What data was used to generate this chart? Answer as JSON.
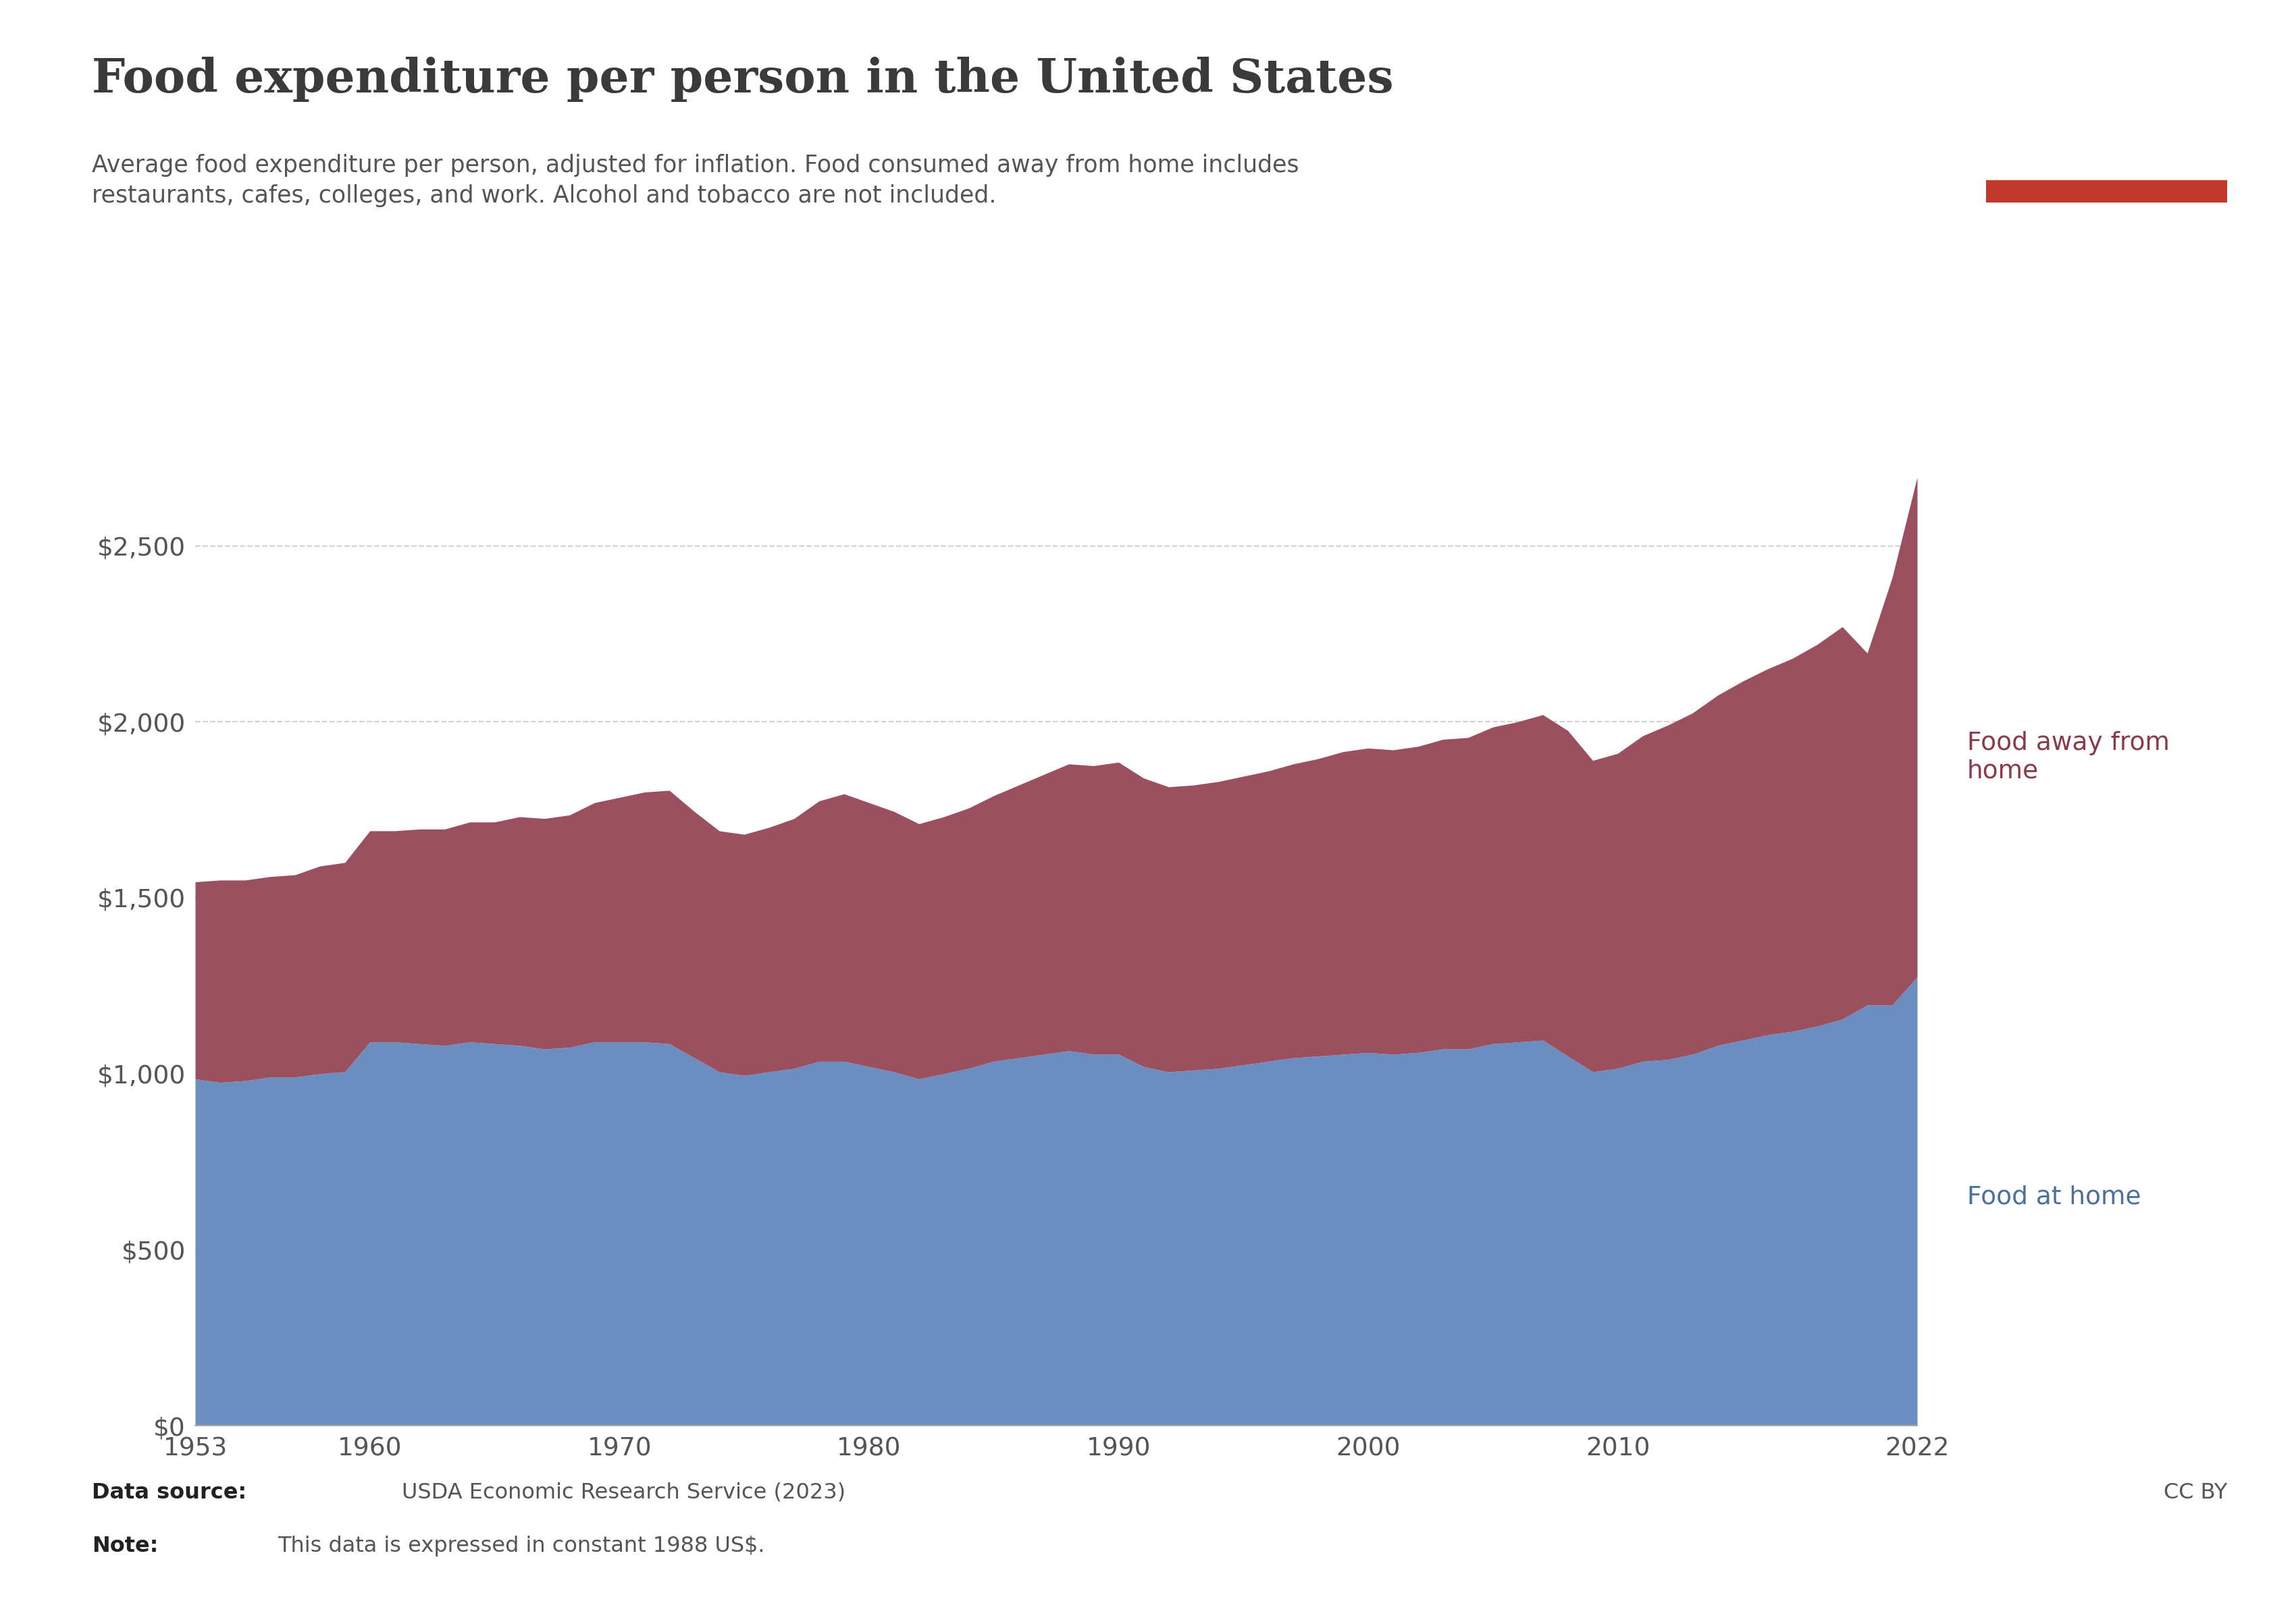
{
  "title": "Food expenditure per person in the United States",
  "subtitle": "Average food expenditure per person, adjusted for inflation. Food consumed away from home includes\nrestaurants, cafes, colleges, and work. Alcohol and tobacco are not included.",
  "data_source": "USDA Economic Research Service (2023)",
  "note": "This data is expressed in constant 1988 US$.",
  "label_home": "Food at home",
  "label_away": "Food away from\nhome",
  "color_home": "#6b8dc0",
  "color_away": "#9b5060",
  "background_color": "#ffffff",
  "years": [
    1953,
    1954,
    1955,
    1956,
    1957,
    1958,
    1959,
    1960,
    1961,
    1962,
    1963,
    1964,
    1965,
    1966,
    1967,
    1968,
    1969,
    1970,
    1971,
    1972,
    1973,
    1974,
    1975,
    1976,
    1977,
    1978,
    1979,
    1980,
    1981,
    1982,
    1983,
    1984,
    1985,
    1986,
    1987,
    1988,
    1989,
    1990,
    1991,
    1992,
    1993,
    1994,
    1995,
    1996,
    1997,
    1998,
    1999,
    2000,
    2001,
    2002,
    2003,
    2004,
    2005,
    2006,
    2007,
    2008,
    2009,
    2010,
    2011,
    2012,
    2013,
    2014,
    2015,
    2016,
    2017,
    2018,
    2019,
    2020,
    2021,
    2022
  ],
  "food_at_home": [
    985,
    975,
    980,
    990,
    990,
    1000,
    1005,
    1090,
    1090,
    1085,
    1080,
    1090,
    1085,
    1080,
    1070,
    1075,
    1090,
    1090,
    1090,
    1085,
    1045,
    1005,
    995,
    1005,
    1015,
    1035,
    1035,
    1020,
    1005,
    985,
    1000,
    1015,
    1035,
    1045,
    1055,
    1065,
    1055,
    1055,
    1020,
    1005,
    1010,
    1015,
    1025,
    1035,
    1045,
    1050,
    1055,
    1060,
    1055,
    1060,
    1070,
    1070,
    1085,
    1090,
    1095,
    1050,
    1005,
    1015,
    1035,
    1040,
    1055,
    1080,
    1095,
    1110,
    1120,
    1135,
    1155,
    1195,
    1195,
    1275
  ],
  "food_away_from_home": [
    560,
    575,
    570,
    570,
    575,
    590,
    595,
    600,
    600,
    610,
    615,
    625,
    630,
    650,
    655,
    660,
    680,
    695,
    710,
    720,
    700,
    685,
    685,
    695,
    710,
    740,
    760,
    750,
    740,
    725,
    730,
    740,
    755,
    775,
    795,
    815,
    820,
    830,
    820,
    810,
    810,
    815,
    820,
    825,
    835,
    845,
    860,
    865,
    865,
    870,
    880,
    885,
    900,
    910,
    925,
    925,
    885,
    895,
    925,
    950,
    970,
    995,
    1020,
    1040,
    1060,
    1085,
    1115,
    1000,
    1215,
    1420
  ],
  "ylim": [
    0,
    2900
  ],
  "yticks": [
    0,
    500,
    1000,
    1500,
    2000,
    2500
  ],
  "xticks": [
    1953,
    1960,
    1970,
    1980,
    1990,
    2000,
    2010,
    2022
  ],
  "owid_box_color": "#0d2d5e",
  "owid_stripe_color": "#c0392b",
  "title_color": "#3a3a3a",
  "subtitle_color": "#555555",
  "axis_color": "#555555",
  "grid_color": "#cccccc",
  "annotation_color_home": "#4a6fa0",
  "annotation_color_away": "#8b3a4a"
}
